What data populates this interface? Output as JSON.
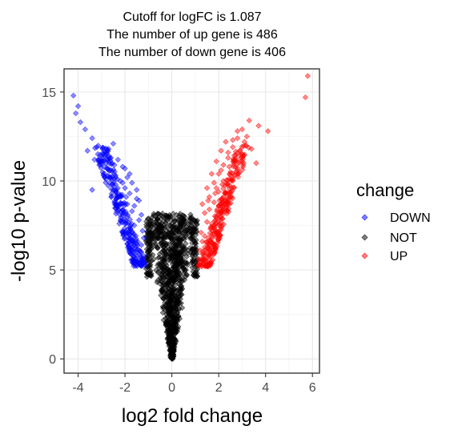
{
  "chart_data": {
    "type": "scatter",
    "title_lines": [
      "Cutoff for logFC is 1.087",
      "The number of up gene is 486",
      "The number of down gene is 406"
    ],
    "xlabel": "log2 fold change",
    "ylabel": "-log10 p-value",
    "xlim": [
      -4.6,
      6.3
    ],
    "ylim": [
      -0.8,
      16.3
    ],
    "x_ticks": [
      -4,
      -2,
      0,
      2,
      4,
      6
    ],
    "x_tick_labels": [
      "-4",
      "-2",
      "0",
      "2",
      "4",
      "6"
    ],
    "y_ticks": [
      0,
      5,
      10,
      15
    ],
    "y_tick_labels": [
      "0",
      "5",
      "10",
      "15"
    ],
    "grid": true,
    "legend": {
      "title": "change",
      "position": "right",
      "entries": [
        {
          "label": "DOWN",
          "color": "#0000ff"
        },
        {
          "label": "NOT",
          "color": "#000000"
        },
        {
          "label": "UP",
          "color": "#ff0000"
        }
      ]
    },
    "series": [
      {
        "name": "DOWN",
        "color": "#0000ff",
        "points": [
          [
            -4.2,
            14.8
          ],
          [
            -4.0,
            14.2
          ],
          [
            -3.9,
            13.3
          ],
          [
            -4.1,
            13.8
          ],
          [
            -3.7,
            12.9
          ],
          [
            -3.4,
            12.4
          ],
          [
            -3.6,
            11.7
          ],
          [
            -3.2,
            11.9
          ],
          [
            -3.0,
            11.4
          ],
          [
            -2.8,
            11.0
          ],
          [
            -2.6,
            10.6
          ],
          [
            -2.4,
            10.3
          ],
          [
            -2.2,
            10.0
          ],
          [
            -2.0,
            9.6
          ],
          [
            -1.8,
            9.3
          ],
          [
            -1.6,
            8.6
          ],
          [
            -1.4,
            7.8
          ],
          [
            -1.2,
            6.8
          ],
          [
            -1.15,
            5.4
          ],
          [
            -3.4,
            9.5
          ],
          [
            -2.7,
            11.8
          ],
          [
            -2.5,
            12.1
          ],
          [
            -2.3,
            11.2
          ],
          [
            -2.1,
            10.8
          ],
          [
            -1.9,
            10.2
          ],
          [
            -1.7,
            9.9
          ],
          [
            -1.5,
            9.0
          ],
          [
            -1.3,
            8.1
          ],
          [
            -2.9,
            10.3
          ],
          [
            -2.2,
            9.2
          ],
          [
            -1.9,
            8.7
          ],
          [
            -1.6,
            7.5
          ],
          [
            -1.3,
            6.4
          ],
          [
            -1.2,
            5.8
          ],
          [
            -3.1,
            10.9
          ],
          [
            -2.6,
            11.3
          ],
          [
            -2.0,
            10.7
          ],
          [
            -1.8,
            10.4
          ],
          [
            -1.5,
            9.5
          ],
          [
            -1.4,
            8.9
          ],
          [
            -2.4,
            9.8
          ],
          [
            -2.1,
            9.9
          ],
          [
            -1.7,
            8.3
          ],
          [
            -1.25,
            7.2
          ],
          [
            -3.3,
            11.2
          ],
          [
            -2.85,
            11.6
          ],
          [
            -2.45,
            10.9
          ],
          [
            -1.95,
            9.1
          ]
        ]
      },
      {
        "name": "NOT",
        "color": "#000000",
        "points": []
      },
      {
        "name": "UP",
        "color": "#ff0000",
        "points": [
          [
            5.8,
            15.9
          ],
          [
            5.7,
            14.7
          ],
          [
            3.7,
            13.1
          ],
          [
            3.3,
            13.4
          ],
          [
            3.0,
            12.9
          ],
          [
            2.8,
            12.4
          ],
          [
            2.6,
            11.9
          ],
          [
            2.4,
            11.3
          ],
          [
            2.2,
            10.9
          ],
          [
            2.0,
            10.4
          ],
          [
            1.8,
            9.9
          ],
          [
            1.6,
            9.1
          ],
          [
            1.4,
            8.2
          ],
          [
            1.25,
            7.1
          ],
          [
            1.15,
            5.6
          ],
          [
            2.3,
            12.2
          ],
          [
            2.1,
            11.7
          ],
          [
            1.9,
            11.1
          ],
          [
            1.7,
            10.4
          ],
          [
            1.5,
            9.6
          ],
          [
            1.3,
            8.7
          ],
          [
            2.5,
            10.5
          ],
          [
            2.0,
            9.4
          ],
          [
            1.8,
            8.8
          ],
          [
            1.5,
            7.7
          ],
          [
            1.3,
            6.6
          ],
          [
            2.7,
            11.1
          ],
          [
            2.9,
            11.7
          ],
          [
            3.1,
            12.2
          ],
          [
            2.2,
            10.0
          ],
          [
            1.9,
            9.6
          ],
          [
            1.6,
            8.4
          ],
          [
            4.1,
            12.8
          ],
          [
            3.4,
            11.8
          ],
          [
            2.6,
            10.0
          ],
          [
            2.3,
            9.3
          ],
          [
            1.7,
            7.6
          ],
          [
            1.4,
            6.9
          ],
          [
            1.2,
            6.1
          ],
          [
            2.1,
            10.6
          ],
          [
            2.4,
            11.6
          ],
          [
            2.8,
            12.8
          ],
          [
            3.2,
            12.5
          ],
          [
            1.55,
            8.9
          ],
          [
            1.85,
            9.3
          ],
          [
            2.15,
            9.8
          ],
          [
            2.45,
            10.8
          ],
          [
            3.6,
            11.0
          ],
          [
            2.0,
            8.6
          ],
          [
            1.75,
            7.2
          ],
          [
            3.0,
            11.5
          ],
          [
            2.6,
            12.3
          ]
        ]
      }
    ]
  }
}
